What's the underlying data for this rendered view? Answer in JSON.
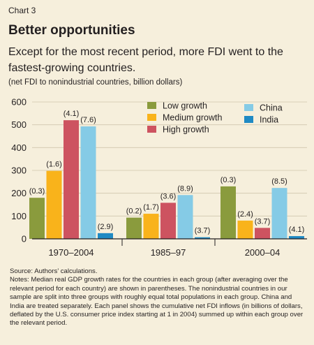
{
  "header": {
    "chart_label": "Chart 3",
    "title": "Better opportunities",
    "subtitle": "Except for the most recent period, more FDI went to the fastest-growing countries.",
    "units": "(net FDI to nonindustrial countries, billion dollars)"
  },
  "footer": {
    "source": "Source: Authors’ calculations.",
    "notes": "Notes: Median real GDP growth rates for the countries in each group (after averaging over the relevant period for each country) are shown in parentheses. The nonindustrial countries in our sample are split into three groups with roughly equal total populations in each group. China and India are treated separately. Each panel shows the cumulative net FDI inflows (in billions of dollars, deflated by the U.S. consumer price index starting at 1 in 2004) summed up within each group over the relevant period."
  },
  "chart_data": {
    "type": "bar",
    "title": "Better opportunities",
    "ylabel": "net FDI to nonindustrial countries, billion dollars",
    "ylim": [
      0,
      600
    ],
    "yticks": [
      0,
      100,
      200,
      300,
      400,
      500,
      600
    ],
    "grid": true,
    "legend_position": "top",
    "categories": [
      "1970–2004",
      "1985–97",
      "2000–04"
    ],
    "series": [
      {
        "name": "Low growth",
        "color": "#8a9b3d",
        "values": [
          180,
          93,
          230
        ],
        "labels": [
          "(0.3)",
          "(0.2)",
          "(0.3)"
        ]
      },
      {
        "name": "Medium growth",
        "color": "#f9b31b",
        "values": [
          298,
          110,
          80
        ],
        "labels": [
          "(1.6)",
          "(1.7)",
          "(2.4)"
        ]
      },
      {
        "name": "High growth",
        "color": "#cd5360",
        "values": [
          520,
          158,
          48
        ],
        "labels": [
          "(4.1)",
          "(3.6)",
          "(3.7)"
        ]
      },
      {
        "name": "China",
        "color": "#85cbe6",
        "values": [
          493,
          192,
          223
        ],
        "labels": [
          "(7.6)",
          "(8.9)",
          "(8.5)"
        ]
      },
      {
        "name": "India",
        "color": "#1f8ac4",
        "values": [
          25,
          7,
          12
        ],
        "labels": [
          "(2.9)",
          "(3.7)",
          "(4.1)"
        ]
      }
    ]
  }
}
